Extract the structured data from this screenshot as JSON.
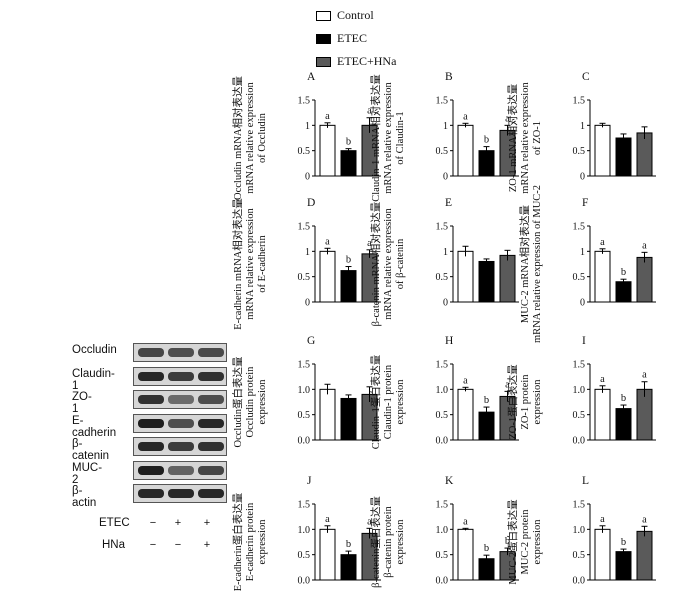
{
  "legend": [
    {
      "label": "Control",
      "color": "#ffffff"
    },
    {
      "label": "ETEC",
      "color": "#000000"
    },
    {
      "label": "ETEC+HNa",
      "color": "#5a5a5a"
    }
  ],
  "blot": {
    "proteins": [
      "Occludin",
      "Claudin-1",
      "ZO-1",
      "E-cadherin",
      "β-catenin",
      "MUC-2",
      "β-actin"
    ],
    "treatments": [
      {
        "name": "ETEC",
        "signs": [
          "−",
          "+",
          "+"
        ]
      },
      {
        "name": "HNa",
        "signs": [
          "−",
          "−",
          "+"
        ]
      }
    ]
  },
  "chart_data": [
    {
      "type": "bar",
      "panel": "A",
      "ylabel": [
        "Occludin mRNA相对表达量",
        "mRNA relative expression",
        "of Occludin"
      ],
      "categories": [
        "Control",
        "ETEC",
        "ETEC+HNa"
      ],
      "values": [
        1.0,
        0.5,
        1.0
      ],
      "errors": [
        0.05,
        0.04,
        0.15
      ],
      "letters": [
        "a",
        "b",
        "a"
      ],
      "ylim": [
        0,
        1.5
      ],
      "yticks": [
        "0",
        "0.5",
        "1",
        "1.5"
      ]
    },
    {
      "type": "bar",
      "panel": "B",
      "ylabel": [
        "Claudin-1 mRNA相对表达量",
        "mRNA relative expression",
        "of Claudin-1"
      ],
      "categories": [
        "Control",
        "ETEC",
        "ETEC+HNa"
      ],
      "values": [
        1.0,
        0.5,
        0.9
      ],
      "errors": [
        0.04,
        0.08,
        0.1
      ],
      "letters": [
        "a",
        "b",
        "a"
      ],
      "ylim": [
        0,
        1.5
      ],
      "yticks": [
        "0",
        "0.5",
        "1",
        "1.5"
      ]
    },
    {
      "type": "bar",
      "panel": "C",
      "ylabel": [
        "ZO-1 mRNA相对表达量",
        "mRNA relative expression",
        "of ZO-1"
      ],
      "categories": [
        "Control",
        "ETEC",
        "ETEC+HNa"
      ],
      "values": [
        1.0,
        0.75,
        0.85
      ],
      "errors": [
        0.04,
        0.08,
        0.12
      ],
      "letters": [
        "",
        "",
        ""
      ],
      "ylim": [
        0,
        1.5
      ],
      "yticks": [
        "0",
        "0.5",
        "1",
        "1.5"
      ]
    },
    {
      "type": "bar",
      "panel": "D",
      "ylabel": [
        "E-cadherin mRNA相对表达量",
        "mRNA relative expression",
        "of E-cadherin"
      ],
      "categories": [
        "Control",
        "ETEC",
        "ETEC+HNa"
      ],
      "values": [
        1.0,
        0.62,
        0.95
      ],
      "errors": [
        0.06,
        0.08,
        0.08
      ],
      "letters": [
        "a",
        "b",
        "a"
      ],
      "ylim": [
        0,
        1.5
      ],
      "yticks": [
        "0",
        "0.5",
        "1",
        "1.5"
      ]
    },
    {
      "type": "bar",
      "panel": "E",
      "ylabel": [
        "β-catenin mRNA相对表达量",
        "mRNA relative expression",
        "of β-catenin"
      ],
      "categories": [
        "Control",
        "ETEC",
        "ETEC+HNa"
      ],
      "values": [
        1.0,
        0.8,
        0.92
      ],
      "errors": [
        0.1,
        0.05,
        0.1
      ],
      "letters": [
        "",
        "",
        ""
      ],
      "ylim": [
        0,
        1.5
      ],
      "yticks": [
        "0",
        "0.5",
        "1",
        "1.5"
      ]
    },
    {
      "type": "bar",
      "panel": "F",
      "ylabel": [
        "MUC-2 mRNA相对表达量",
        "mRNA relative expression of MUC-2"
      ],
      "categories": [
        "Control",
        "ETEC",
        "ETEC+HNa"
      ],
      "values": [
        1.0,
        0.4,
        0.88
      ],
      "errors": [
        0.05,
        0.05,
        0.1
      ],
      "letters": [
        "a",
        "b",
        "a"
      ],
      "ylim": [
        0,
        1.5
      ],
      "yticks": [
        "0",
        "0.5",
        "1",
        "1.5"
      ]
    },
    {
      "type": "bar",
      "panel": "G",
      "ylabel": [
        "Occludin蛋白表达量",
        "Occludin protein",
        "expression"
      ],
      "categories": [
        "Control",
        "ETEC",
        "ETEC+HNa"
      ],
      "values": [
        1.0,
        0.82,
        0.9
      ],
      "errors": [
        0.1,
        0.07,
        0.15
      ],
      "letters": [
        "",
        "",
        ""
      ],
      "ylim": [
        0,
        1.5
      ],
      "yticks": [
        "0.0",
        "0.5",
        "1.0",
        "1.5"
      ]
    },
    {
      "type": "bar",
      "panel": "H",
      "ylabel": [
        "Claudin-1蛋白表达量",
        "Claudin-1 protein",
        "expression"
      ],
      "categories": [
        "Control",
        "ETEC",
        "ETEC+HNa"
      ],
      "values": [
        1.0,
        0.55,
        0.86
      ],
      "errors": [
        0.04,
        0.1,
        0.1
      ],
      "letters": [
        "a",
        "b",
        "a"
      ],
      "ylim": [
        0,
        1.5
      ],
      "yticks": [
        "0.0",
        "0.5",
        "1.0",
        "1.5"
      ]
    },
    {
      "type": "bar",
      "panel": "I",
      "ylabel": [
        "ZO-1蛋白表达量",
        "ZO-1 protein",
        "expression"
      ],
      "categories": [
        "Control",
        "ETEC",
        "ETEC+HNa"
      ],
      "values": [
        1.0,
        0.62,
        1.0
      ],
      "errors": [
        0.07,
        0.07,
        0.15
      ],
      "letters": [
        "a",
        "b",
        "a"
      ],
      "ylim": [
        0,
        1.5
      ],
      "yticks": [
        "0.0",
        "0.5",
        "1.0",
        "1.5"
      ]
    },
    {
      "type": "bar",
      "panel": "J",
      "ylabel": [
        "E-cadherin蛋白表达量",
        "E-cadherin protein",
        "expression"
      ],
      "categories": [
        "Control",
        "ETEC",
        "ETEC+HNa"
      ],
      "values": [
        1.0,
        0.5,
        0.92
      ],
      "errors": [
        0.07,
        0.07,
        0.1
      ],
      "letters": [
        "a",
        "b",
        "a"
      ],
      "ylim": [
        0,
        1.5
      ],
      "yticks": [
        "0.0",
        "0.5",
        "1.0",
        "1.5"
      ]
    },
    {
      "type": "bar",
      "panel": "K",
      "ylabel": [
        "β-catenin蛋白表达量",
        "β-catenin protein",
        "expression"
      ],
      "categories": [
        "Control",
        "ETEC",
        "ETEC+HNa"
      ],
      "values": [
        1.0,
        0.42,
        0.56
      ],
      "errors": [
        0.02,
        0.07,
        0.07
      ],
      "letters": [
        "a",
        "b",
        "b"
      ],
      "ylim": [
        0,
        1.5
      ],
      "yticks": [
        "0.0",
        "0.5",
        "1.0",
        "1.5"
      ]
    },
    {
      "type": "bar",
      "panel": "L",
      "ylabel": [
        "MUC-2蛋白表达量",
        "MUC-2 protein",
        "expression"
      ],
      "categories": [
        "Control",
        "ETEC",
        "ETEC+HNa"
      ],
      "values": [
        1.0,
        0.56,
        0.96
      ],
      "errors": [
        0.07,
        0.05,
        0.1
      ],
      "letters": [
        "a",
        "b",
        "a"
      ],
      "ylim": [
        0,
        1.5
      ],
      "yticks": [
        "0.0",
        "0.5",
        "1.0",
        "1.5"
      ]
    }
  ]
}
